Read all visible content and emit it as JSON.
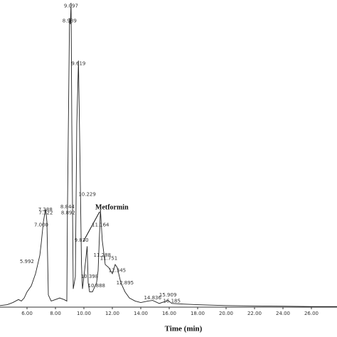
{
  "chart_data": {
    "type": "line",
    "x_label": "Time (min)",
    "annotation": "Metformin",
    "xlim": [
      4.1,
      27.8
    ],
    "ylim": [
      0,
      100
    ],
    "xticks": [
      {
        "value": 6,
        "label": "6.00"
      },
      {
        "value": 8,
        "label": "8.00"
      },
      {
        "value": 10,
        "label": "10.00"
      },
      {
        "value": 12,
        "label": "12.00"
      },
      {
        "value": 14,
        "label": "14.00"
      },
      {
        "value": 16,
        "label": "16.00"
      },
      {
        "value": 18,
        "label": "18.00"
      },
      {
        "value": 20,
        "label": "20.00"
      },
      {
        "value": 22,
        "label": "22.00"
      },
      {
        "value": 24,
        "label": "24.00"
      },
      {
        "value": 26,
        "label": "26.00"
      }
    ],
    "series": [
      {
        "color": "#222222",
        "x": [
          4.1,
          4.6,
          5.0,
          5.4,
          5.6,
          5.8,
          6.0,
          6.3,
          6.6,
          6.9,
          7.0,
          7.15,
          7.29,
          7.32,
          7.4,
          7.5,
          7.7,
          8.0,
          8.3,
          8.6,
          8.8,
          8.84,
          8.99,
          9.05,
          9.097,
          9.15,
          9.25,
          9.4,
          9.5,
          9.619,
          9.72,
          9.83,
          9.9,
          10.0,
          10.229,
          10.3,
          10.4,
          10.6,
          10.89,
          11.0,
          11.164,
          11.29,
          11.5,
          11.75,
          12.0,
          12.2,
          12.345,
          12.6,
          12.895,
          13.2,
          13.6,
          14.0,
          14.5,
          14.84,
          15.3,
          15.909,
          16.185,
          17,
          18,
          20,
          22,
          24,
          26,
          27.8
        ],
        "values": [
          0.5,
          0.8,
          1.5,
          2.5,
          2,
          3,
          5,
          7,
          11,
          17,
          21,
          28,
          32,
          32,
          28,
          4,
          2,
          2.5,
          3,
          2.5,
          2,
          30,
          95,
          93,
          100,
          60,
          6,
          10,
          60,
          81,
          50,
          14,
          6,
          10,
          20,
          8,
          5,
          5,
          8,
          12,
          32,
          22,
          14,
          13,
          11,
          14,
          13,
          8,
          5,
          3,
          2,
          1.5,
          2,
          2.2,
          1.2,
          2.2,
          1.2,
          1,
          0.8,
          0.5,
          0.4,
          0.3,
          0.2,
          0.2
        ]
      },
      {
        "type": "peak_labels",
        "color": "#333333",
        "x": [
          9.097,
          8.989,
          9.619,
          10.229,
          8.844,
          8.892,
          7.288,
          7.322,
          7.0,
          5.992,
          11.164,
          9.83,
          11.288,
          11.751,
          12.345,
          12.895,
          10.398,
          10.888,
          15.909,
          16.185,
          14.836
        ],
        "values": [
          99,
          94,
          80,
          37,
          33,
          31,
          32,
          31,
          27,
          15,
          27,
          22,
          17,
          16,
          12,
          8,
          10,
          7,
          4,
          2,
          3
        ],
        "value_labels": [
          "9.097",
          "8.989",
          "9.619",
          "10.229",
          "8.844",
          "8.892",
          "7.288",
          "7.322",
          "7.000",
          "5.992",
          "11.164",
          "9.830",
          "11.288",
          "11.751",
          "12.345",
          "12.895",
          "10.398",
          "10.888",
          "15.909",
          "16.185",
          "14.836"
        ]
      }
    ]
  }
}
